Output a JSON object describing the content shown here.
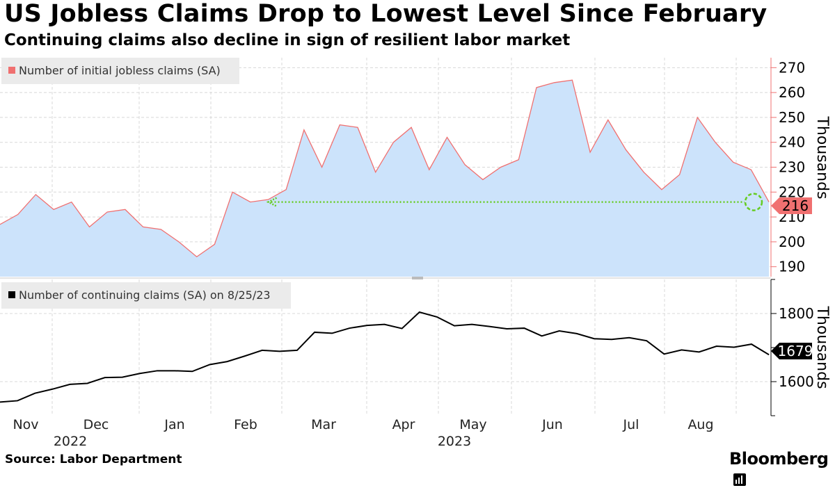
{
  "header": {
    "title": "US Jobless Claims Drop to Lowest Level Since February",
    "subtitle": "Continuing claims also decline in sign of resilient labor market"
  },
  "footer": {
    "source": "Source: Labor Department",
    "brand": "Bloomberg"
  },
  "colors": {
    "initial_line": "#f07070",
    "initial_fill": "#cce3fb",
    "continuing_line": "#000000",
    "grid": "#d8d8d8",
    "annotation": "#66cc22"
  },
  "chart_data": [
    {
      "type": "area",
      "legend": "Number of initial jobless claims (SA)",
      "ylabel": "Thousands",
      "ylim": [
        186,
        274
      ],
      "yticks": [
        190,
        200,
        210,
        220,
        230,
        240,
        250,
        260,
        270
      ],
      "last_value_label": "216",
      "annotation": "Dotted arrow from latest reading (216) back to February level",
      "values": [
        207,
        211,
        219,
        213,
        216,
        206,
        212,
        213,
        206,
        205,
        200,
        194,
        199,
        220,
        216,
        217,
        221,
        245,
        230,
        247,
        246,
        228,
        240,
        246,
        229,
        242,
        231,
        225,
        230,
        233,
        262,
        264,
        265,
        236,
        249,
        237,
        228,
        221,
        227,
        250,
        240,
        232,
        229,
        216
      ]
    },
    {
      "type": "line",
      "legend": "Number of continuing claims (SA) on 8/25/23",
      "ylabel": "Thousands",
      "ylim": [
        1500,
        1900
      ],
      "yticks": [
        1600,
        1800
      ],
      "last_value_label": "1679",
      "values": [
        1540,
        1544,
        1566,
        1578,
        1592,
        1595,
        1612,
        1613,
        1624,
        1632,
        1632,
        1630,
        1650,
        1659,
        1675,
        1692,
        1689,
        1692,
        1745,
        1742,
        1757,
        1765,
        1768,
        1756,
        1804,
        1790,
        1764,
        1768,
        1762,
        1755,
        1757,
        1734,
        1749,
        1741,
        1726,
        1724,
        1729,
        1720,
        1681,
        1693,
        1687,
        1704,
        1701,
        1710,
        1679
      ]
    }
  ],
  "x_axis": {
    "months": [
      "Nov",
      "Dec",
      "Jan",
      "Feb",
      "Mar",
      "Apr",
      "May",
      "Jun",
      "Jul",
      "Aug"
    ],
    "years": [
      "2022",
      "2023"
    ]
  }
}
